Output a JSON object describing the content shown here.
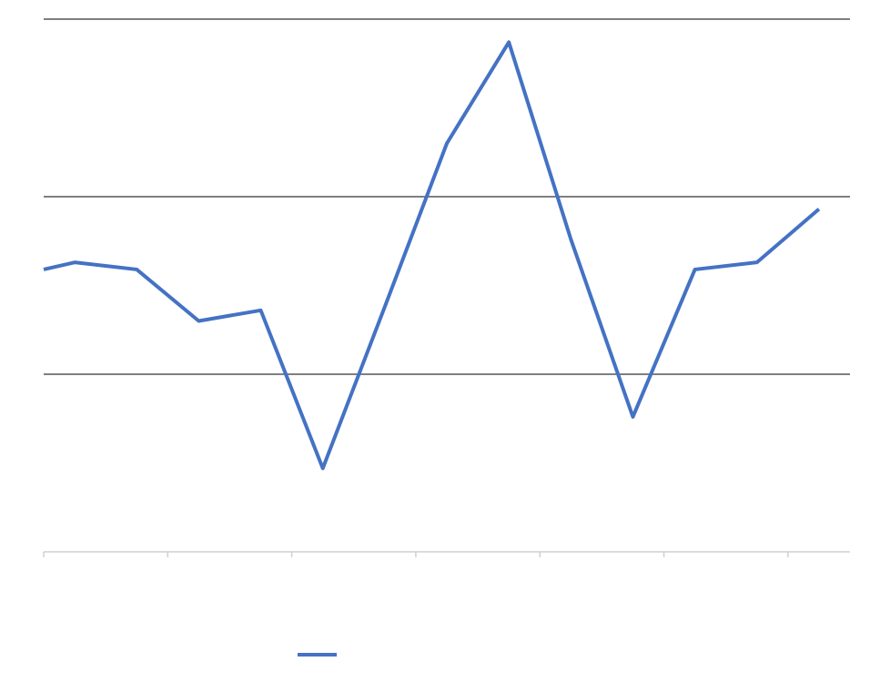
{
  "chart_data": {
    "type": "line",
    "x": [
      0,
      0.5,
      1.5,
      2.5,
      3.5,
      4.5,
      5.5,
      6.5,
      7.5,
      8.5,
      9.5,
      10.5,
      11.5,
      12.5
    ],
    "series": [
      {
        "color": "#4472c4",
        "values": [
          1.59,
          1.63,
          1.59,
          1.3,
          1.36,
          0.47,
          1.38,
          2.3,
          2.87,
          1.76,
          0.76,
          1.59,
          1.63,
          1.93
        ]
      }
    ],
    "xlim": [
      0,
      13
    ],
    "xticks": [
      0,
      2,
      4,
      6,
      8,
      10,
      12
    ],
    "ylim": [
      0,
      3
    ],
    "yticks": [
      0,
      1,
      2,
      3
    ],
    "grid": true
  }
}
